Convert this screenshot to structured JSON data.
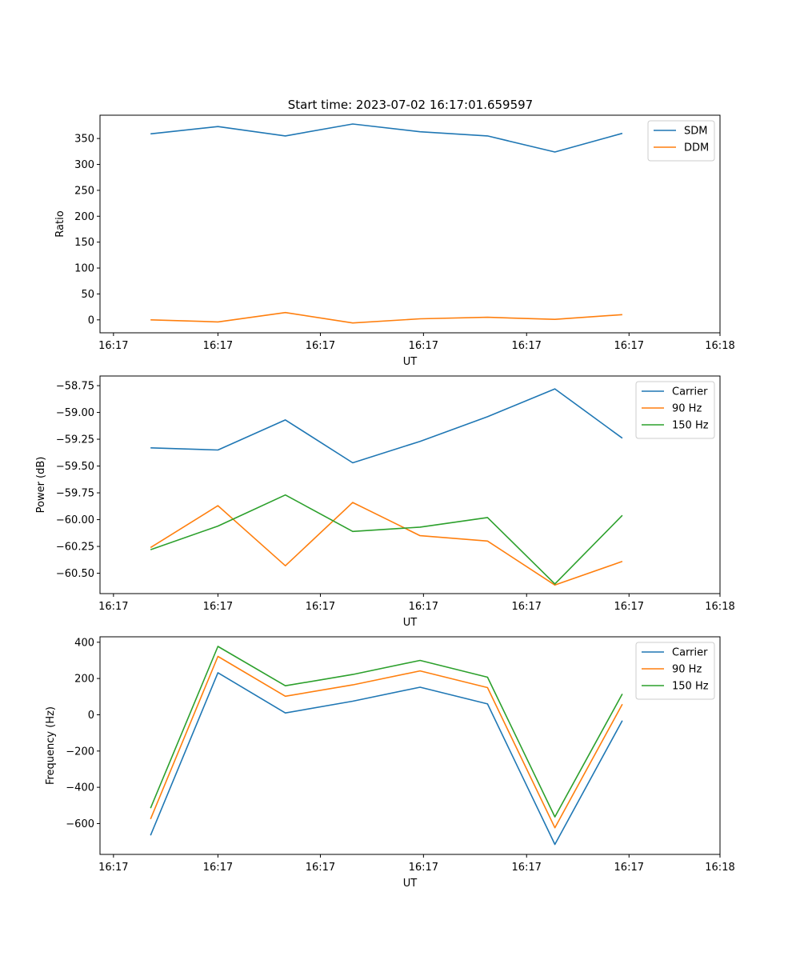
{
  "figure": {
    "title": "Start time: 2023-07-02 16:17:01.659597"
  },
  "chart_data": [
    {
      "type": "line",
      "xlabel": "UT",
      "ylabel": "Ratio",
      "x": [
        1,
        2,
        3,
        4,
        5,
        6,
        7,
        8
      ],
      "xlim": [
        0.25,
        9.45
      ],
      "xticks": [
        0.45,
        2.0,
        3.52,
        5.05,
        6.58,
        8.1,
        9.45
      ],
      "xtick_labels": [
        "16:17",
        "16:17",
        "16:17",
        "16:17",
        "16:17",
        "16:17",
        "16:18"
      ],
      "ylim": [
        -25,
        395
      ],
      "yticks": [
        0,
        50,
        100,
        150,
        200,
        250,
        300,
        350
      ],
      "ytick_labels": [
        "0",
        "50",
        "100",
        "150",
        "200",
        "250",
        "300",
        "350"
      ],
      "legend_loc": "top-right",
      "series": [
        {
          "name": "SDM",
          "color": "#1f77b4",
          "values": [
            359,
            373,
            355,
            378,
            363,
            355,
            324,
            360
          ]
        },
        {
          "name": "DDM",
          "color": "#ff7f0e",
          "values": [
            0,
            -4,
            14,
            -6,
            2,
            5,
            1,
            10
          ]
        }
      ]
    },
    {
      "type": "line",
      "xlabel": "UT",
      "ylabel": "Power (dB)",
      "x": [
        1,
        2,
        3,
        4,
        5,
        6,
        7,
        8
      ],
      "xlim": [
        0.25,
        9.45
      ],
      "xticks": [
        0.45,
        2.0,
        3.52,
        5.05,
        6.58,
        8.1,
        9.45
      ],
      "xtick_labels": [
        "16:17",
        "16:17",
        "16:17",
        "16:17",
        "16:17",
        "16:17",
        "16:18"
      ],
      "ylim": [
        -60.69,
        -58.66
      ],
      "yticks": [
        -60.5,
        -60.25,
        -60.0,
        -59.75,
        -59.5,
        -59.25,
        -59.0,
        -58.75
      ],
      "ytick_labels": [
        "−60.50",
        "−60.25",
        "−60.00",
        "−59.75",
        "−59.50",
        "−59.25",
        "−59.00",
        "−58.75"
      ],
      "legend_loc": "top-right",
      "series": [
        {
          "name": "Carrier",
          "color": "#1f77b4",
          "values": [
            -59.33,
            -59.35,
            -59.07,
            -59.47,
            -59.27,
            -59.04,
            -58.78,
            -59.24
          ]
        },
        {
          "name": "90 Hz",
          "color": "#ff7f0e",
          "values": [
            -60.26,
            -59.87,
            -60.43,
            -59.84,
            -60.15,
            -60.2,
            -60.61,
            -60.39
          ]
        },
        {
          "name": "150 Hz",
          "color": "#2ca02c",
          "values": [
            -60.28,
            -60.06,
            -59.77,
            -60.11,
            -60.07,
            -59.98,
            -60.6,
            -59.96
          ]
        }
      ]
    },
    {
      "type": "line",
      "xlabel": "UT",
      "ylabel": "Frequency (Hz)",
      "x": [
        1,
        2,
        3,
        4,
        5,
        6,
        7,
        8
      ],
      "xlim": [
        0.25,
        9.45
      ],
      "xticks": [
        0.45,
        2.0,
        3.52,
        5.05,
        6.58,
        8.1,
        9.45
      ],
      "xtick_labels": [
        "16:17",
        "16:17",
        "16:17",
        "16:17",
        "16:17",
        "16:17",
        "16:18"
      ],
      "ylim": [
        -770,
        430
      ],
      "yticks": [
        -600,
        -400,
        -200,
        0,
        200,
        400
      ],
      "ytick_labels": [
        "−600",
        "−400",
        "−200",
        "0",
        "200",
        "400"
      ],
      "legend_loc": "top-right",
      "series": [
        {
          "name": "Carrier",
          "color": "#1f77b4",
          "values": [
            -665,
            232,
            10,
            75,
            152,
            60,
            -715,
            -32
          ]
        },
        {
          "name": "90 Hz",
          "color": "#ff7f0e",
          "values": [
            -575,
            322,
            102,
            165,
            242,
            150,
            -623,
            58
          ]
        },
        {
          "name": "150 Hz",
          "color": "#2ca02c",
          "values": [
            -515,
            377,
            160,
            222,
            300,
            207,
            -563,
            115
          ]
        }
      ]
    }
  ]
}
